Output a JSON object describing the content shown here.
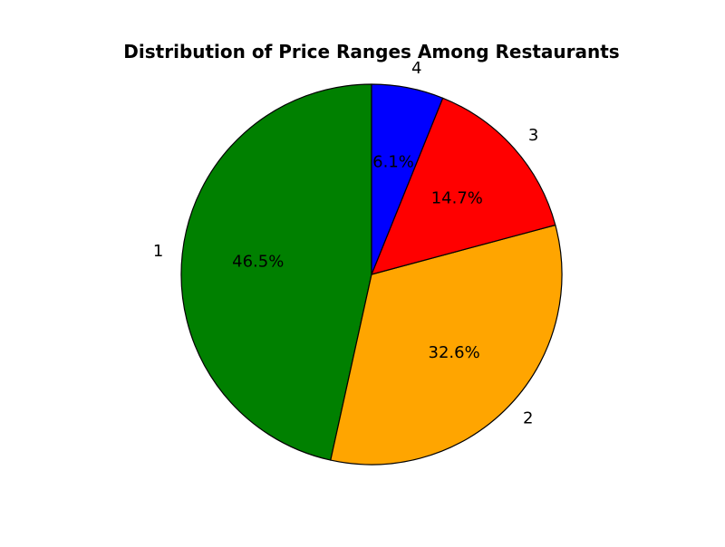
{
  "chart_data": {
    "type": "pie",
    "title": "Distribution of Price Ranges Among Restaurants",
    "start_angle_deg": 90,
    "direction": "counterclockwise",
    "slices": [
      {
        "label": "1",
        "value": 46.5,
        "pct_label": "46.5%",
        "color": "#008000"
      },
      {
        "label": "2",
        "value": 32.6,
        "pct_label": "32.6%",
        "color": "#ffa500"
      },
      {
        "label": "3",
        "value": 14.7,
        "pct_label": "14.7%",
        "color": "#ff0000"
      },
      {
        "label": "4",
        "value": 6.1,
        "pct_label": "6.1%",
        "color": "#0000ff"
      }
    ]
  }
}
